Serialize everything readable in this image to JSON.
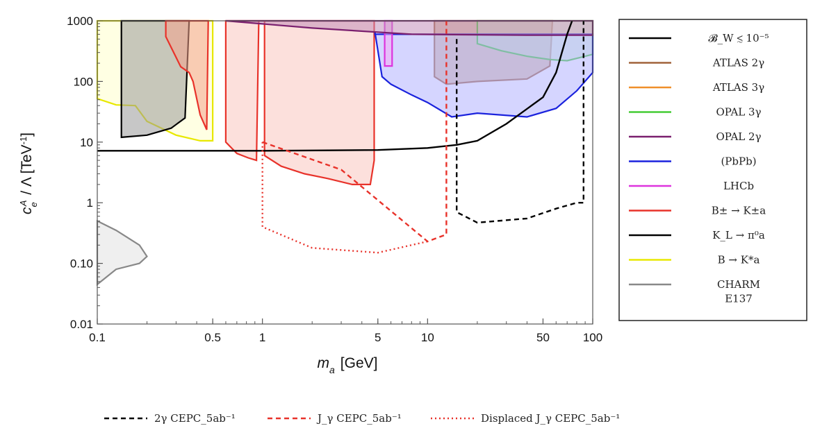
{
  "chart_data": {
    "type": "area",
    "xscale": "log",
    "yscale": "log",
    "xlim": [
      0.1,
      100
    ],
    "ylim": [
      0.01,
      1000
    ],
    "xlabel": "m_a [GeV]",
    "ylabel": "c_e^A / Λ [TeV^-1]",
    "xticks": [
      0.1,
      0.5,
      1,
      5,
      10,
      50,
      100
    ],
    "xtick_labels": [
      "0.1",
      "0.5",
      "1",
      "5",
      "10",
      "50",
      "100"
    ],
    "yticks": [
      0.01,
      0.1,
      1,
      10,
      100,
      1000
    ],
    "ytick_labels": [
      "0.01",
      "0.10",
      "1",
      "10",
      "100",
      "1000"
    ],
    "regions": [
      {
        "name": "B → K*a",
        "color": "#e8e800",
        "fill": "#ffffcc",
        "points": [
          [
            0.1,
            1000
          ],
          [
            0.1,
            52
          ],
          [
            0.13,
            41
          ],
          [
            0.17,
            40
          ],
          [
            0.2,
            22
          ],
          [
            0.3,
            13
          ],
          [
            0.42,
            10.5
          ],
          [
            0.5,
            10.5
          ],
          [
            0.5,
            1000
          ]
        ]
      },
      {
        "name": "K_L → π0a",
        "color": "#000000",
        "fill": "#999999",
        "points": [
          [
            0.14,
            1000
          ],
          [
            0.14,
            12
          ],
          [
            0.2,
            13
          ],
          [
            0.28,
            17
          ],
          [
            0.34,
            25
          ],
          [
            0.36,
            1000
          ]
        ]
      },
      {
        "name": "B± → K±a",
        "color": "#e8322a",
        "fill": "#f4a28c",
        "points": [
          [
            0.26,
            1000
          ],
          [
            0.26,
            550
          ],
          [
            0.32,
            175
          ],
          [
            0.36,
            140
          ],
          [
            0.38,
            100
          ],
          [
            0.42,
            28
          ],
          [
            0.46,
            16
          ],
          [
            0.47,
            1000
          ]
        ]
      },
      {
        "name": "B± → K±a",
        "color": "#e8322a",
        "fill": "#f9c6c0",
        "points": [
          [
            0.6,
            1000
          ],
          [
            0.6,
            10
          ],
          [
            0.7,
            6.5
          ],
          [
            0.82,
            5.5
          ],
          [
            0.92,
            5
          ],
          [
            0.95,
            1000
          ],
          [
            1.03,
            1000
          ],
          [
            1.03,
            6
          ],
          [
            1.3,
            4
          ],
          [
            1.8,
            3
          ],
          [
            2.5,
            2.5
          ],
          [
            3.5,
            2
          ],
          [
            4.5,
            2
          ],
          [
            4.75,
            5
          ],
          [
            4.75,
            1000
          ]
        ]
      },
      {
        "name": "ATLAS 2γ",
        "color": "#a0623a",
        "fill": "#c79a6f",
        "points": [
          [
            11,
            1000
          ],
          [
            11,
            120
          ],
          [
            13,
            90
          ],
          [
            20,
            100
          ],
          [
            40,
            110
          ],
          [
            55,
            180
          ],
          [
            57,
            1000
          ]
        ]
      },
      {
        "name": "OPAL 3γ",
        "color": "#44cc33",
        "fill": "#cceccc",
        "points": [
          [
            20,
            1000
          ],
          [
            20,
            420
          ],
          [
            28,
            320
          ],
          [
            40,
            260
          ],
          [
            55,
            230
          ],
          [
            70,
            220
          ],
          [
            85,
            250
          ],
          [
            100,
            280
          ],
          [
            100,
            1000
          ]
        ]
      },
      {
        "name": "(PbPb)",
        "color": "#1a22dd",
        "fill": "#b3b3ff",
        "points": [
          [
            4.8,
            650
          ],
          [
            5.3,
            120
          ],
          [
            6,
            90
          ],
          [
            8,
            60
          ],
          [
            10,
            45
          ],
          [
            14,
            26
          ],
          [
            20,
            30
          ],
          [
            40,
            26
          ],
          [
            60,
            36
          ],
          [
            80,
            70
          ],
          [
            100,
            140
          ],
          [
            100,
            600
          ],
          [
            4.8,
            600
          ]
        ]
      },
      {
        "name": "LHCb",
        "color": "#dd33dd",
        "fill": "#f4aaf4",
        "points": [
          [
            5.5,
            1000
          ],
          [
            5.5,
            180
          ],
          [
            6.1,
            180
          ],
          [
            6.1,
            1000
          ]
        ]
      },
      {
        "name": "OPAL 2γ",
        "color": "#7a1f6e",
        "fill": "#c28fb9",
        "points": [
          [
            0.6,
            1000
          ],
          [
            2,
            760
          ],
          [
            8,
            600
          ],
          [
            40,
            580
          ],
          [
            100,
            580
          ],
          [
            100,
            1000
          ]
        ]
      },
      {
        "name": "CHARM E137",
        "color": "#888888",
        "fill": "#e2e2e2",
        "points": [
          [
            0.1,
            0.5
          ],
          [
            0.13,
            0.35
          ],
          [
            0.18,
            0.2
          ],
          [
            0.2,
            0.13
          ],
          [
            0.18,
            0.1
          ],
          [
            0.13,
            0.08
          ],
          [
            0.1,
            0.045
          ]
        ]
      }
    ],
    "curves": [
      {
        "name": "B_W ≲ 10^-5",
        "color": "#000000",
        "style": "solid",
        "points": [
          [
            0.1,
            7.2
          ],
          [
            1,
            7.2
          ],
          [
            5,
            7.4
          ],
          [
            10,
            8
          ],
          [
            15,
            9
          ],
          [
            20,
            10.5
          ],
          [
            30,
            20
          ],
          [
            50,
            55
          ],
          [
            60,
            140
          ],
          [
            70,
            600
          ],
          [
            75,
            1000
          ]
        ]
      },
      {
        "name": "2γ CEPC_5ab^-1",
        "color": "#000000",
        "style": "dashed",
        "points": [
          [
            15,
            500
          ],
          [
            15,
            0.7
          ],
          [
            20,
            0.47
          ],
          [
            40,
            0.55
          ],
          [
            60,
            0.8
          ],
          [
            80,
            1.0
          ],
          [
            88,
            1.0
          ],
          [
            88,
            1000
          ]
        ]
      },
      {
        "name": "J_γ CEPC_5ab^-1",
        "color": "#e8322a",
        "style": "dashed",
        "points": [
          [
            1,
            10
          ],
          [
            3,
            3.5
          ],
          [
            10,
            0.23
          ],
          [
            13,
            0.3
          ],
          [
            13,
            1000
          ]
        ]
      },
      {
        "name": "Displaced J_γ CEPC_5ab^-1",
        "color": "#e8322a",
        "style": "dotted",
        "points": [
          [
            1,
            10
          ],
          [
            1,
            0.4
          ],
          [
            2,
            0.18
          ],
          [
            5,
            0.15
          ],
          [
            10,
            0.23
          ]
        ]
      }
    ],
    "legend": [
      {
        "label": "𝓑_W ≲ 10⁻⁵",
        "color": "#000000"
      },
      {
        "label": "ATLAS 2γ",
        "color": "#a0623a"
      },
      {
        "label": "ATLAS 3γ",
        "color": "#f0902a"
      },
      {
        "label": "OPAL 3γ",
        "color": "#44cc33"
      },
      {
        "label": "OPAL 2γ",
        "color": "#7a1f6e"
      },
      {
        "label": "(PbPb)",
        "color": "#1a22dd"
      },
      {
        "label": "LHCb",
        "color": "#dd33dd"
      },
      {
        "label": "B± → K±a",
        "color": "#e8322a"
      },
      {
        "label": "K_L → π⁰a",
        "color": "#000000"
      },
      {
        "label": "B → K*a",
        "color": "#e8e800"
      },
      {
        "label": "CHARM",
        "color": "#888888"
      },
      {
        "label": "E137",
        "color": null
      }
    ],
    "bottom_legend": [
      {
        "label": "2γ CEPC_5ab⁻¹",
        "color": "#000000",
        "style": "dashed"
      },
      {
        "label": "J_γ CEPC_5ab⁻¹",
        "color": "#e8322a",
        "style": "dashed"
      },
      {
        "label": "Displaced J_γ CEPC_5ab⁻¹",
        "color": "#e8322a",
        "style": "dotted"
      }
    ]
  }
}
